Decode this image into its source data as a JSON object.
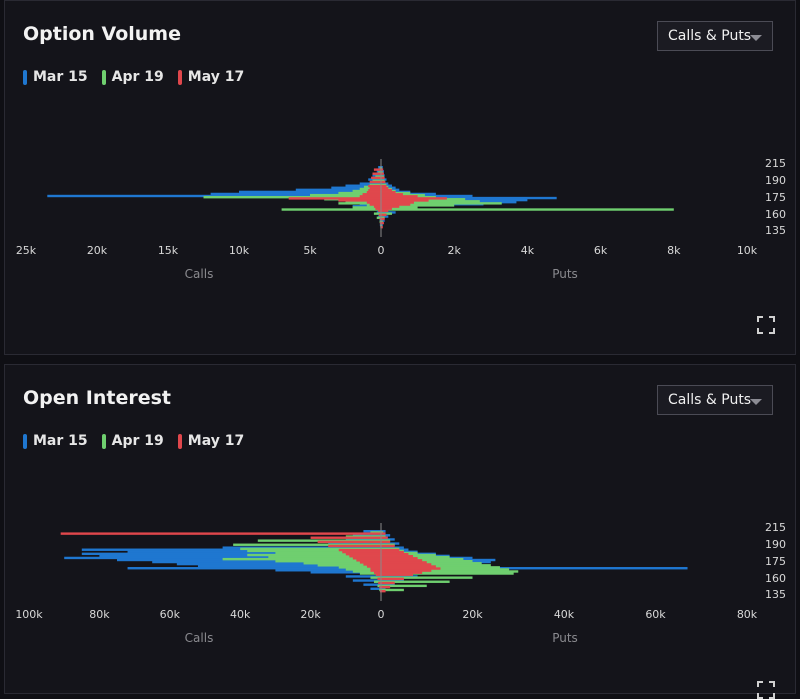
{
  "panels": [
    {
      "title": "Option Volume",
      "dropdown": "Calls & Puts",
      "legend": [
        {
          "label": "Mar 15",
          "color": "#1f77d0"
        },
        {
          "label": "Apr 19",
          "color": "#6fcf6f"
        },
        {
          "label": "May 17",
          "color": "#e0474c"
        }
      ]
    },
    {
      "title": "Open Interest",
      "dropdown": "Calls & Puts",
      "legend": [
        {
          "label": "Mar 15",
          "color": "#1f77d0"
        },
        {
          "label": "Apr 19",
          "color": "#6fcf6f"
        },
        {
          "label": "May 17",
          "color": "#e0474c"
        }
      ]
    }
  ],
  "icons": {
    "expand": "expand-icon",
    "caret": "chevron-down-icon"
  },
  "chart_data": [
    {
      "type": "bar",
      "orientation": "horizontal-diverging",
      "title": "Option Volume",
      "left_label": "Calls",
      "right_label": "Puts",
      "strike_ticks": [
        "215",
        "190",
        "175",
        "160",
        "135"
      ],
      "calls_ticks": [
        "25k",
        "20k",
        "15k",
        "10k",
        "5k",
        "0"
      ],
      "puts_ticks": [
        "2k",
        "4k",
        "6k",
        "8k",
        "10k"
      ],
      "calls_max": 25000,
      "puts_max": 10000,
      "strike_range": [
        130,
        220
      ],
      "series": [
        {
          "name": "Mar 15",
          "color": "#1f77d0",
          "strikes": [
            210,
            205,
            200,
            195,
            190,
            187.5,
            185,
            182.5,
            180,
            177.5,
            175,
            172.5,
            170,
            167.5,
            165,
            162.5,
            160,
            155,
            150,
            145,
            140
          ],
          "calls": [
            200,
            300,
            600,
            900,
            1500,
            2500,
            3500,
            6000,
            10000,
            12000,
            23500,
            6000,
            3000,
            2500,
            1500,
            2000,
            700,
            300,
            200,
            100,
            80
          ],
          "puts": [
            50,
            80,
            100,
            150,
            200,
            300,
            400,
            500,
            800,
            1500,
            2500,
            4800,
            4000,
            3700,
            2800,
            800,
            600,
            400,
            200,
            100,
            50
          ]
        },
        {
          "name": "Apr 19",
          "color": "#6fcf6f",
          "strikes": [
            210,
            205,
            200,
            195,
            190,
            187.5,
            185,
            182.5,
            180,
            177.5,
            175,
            172.5,
            170,
            167.5,
            165,
            162.5,
            160,
            155,
            150,
            145,
            140
          ],
          "calls": [
            100,
            200,
            400,
            600,
            800,
            1200,
            1500,
            2000,
            3000,
            5000,
            12500,
            4000,
            2500,
            3000,
            1000,
            2000,
            7000,
            500,
            300,
            100,
            50
          ],
          "puts": [
            30,
            50,
            80,
            100,
            150,
            200,
            300,
            400,
            800,
            1200,
            1500,
            2300,
            2700,
            3300,
            2000,
            1000,
            8000,
            300,
            100,
            50,
            30
          ],
          "offset": 1
        },
        {
          "name": "May 17",
          "color": "#e0474c",
          "strikes": [
            210,
            205,
            200,
            195,
            190,
            187.5,
            185,
            182.5,
            180,
            177.5,
            175,
            172.5,
            170,
            167.5,
            165,
            162.5,
            160,
            155,
            150,
            145,
            140
          ],
          "calls": [
            500,
            600,
            700,
            800,
            900,
            800,
            900,
            1000,
            1300,
            1500,
            6500,
            3000,
            1000,
            800,
            500,
            400,
            200,
            150,
            100,
            80,
            50
          ],
          "puts": [
            60,
            80,
            100,
            120,
            150,
            200,
            300,
            400,
            600,
            1000,
            1800,
            1300,
            900,
            800,
            500,
            300,
            200,
            150,
            100,
            80,
            50
          ],
          "offset": 2
        }
      ]
    },
    {
      "type": "bar",
      "orientation": "horizontal-diverging",
      "title": "Open Interest",
      "left_label": "Calls",
      "right_label": "Puts",
      "strike_ticks": [
        "215",
        "190",
        "175",
        "160",
        "135"
      ],
      "calls_ticks": [
        "100k",
        "80k",
        "60k",
        "40k",
        "20k",
        "0"
      ],
      "puts_ticks": [
        "20k",
        "40k",
        "60k",
        "80k"
      ],
      "calls_max": 100000,
      "puts_max": 80000,
      "strike_range": [
        130,
        220
      ],
      "series": [
        {
          "name": "Mar 15",
          "color": "#1f77d0",
          "strikes": [
            210,
            205,
            200,
            195,
            190,
            187.5,
            185,
            182.5,
            180,
            177.5,
            175,
            172.5,
            170,
            167.5,
            165,
            162.5,
            160,
            155,
            150,
            145,
            140
          ],
          "calls": [
            5000,
            8000,
            10000,
            15000,
            45000,
            85000,
            72000,
            85000,
            80000,
            90000,
            75000,
            65000,
            58000,
            52000,
            72000,
            30000,
            20000,
            10000,
            8000,
            5000,
            3000
          ],
          "puts": [
            1000,
            2000,
            3000,
            4000,
            5000,
            6000,
            8000,
            12000,
            15000,
            20000,
            25000,
            24000,
            22000,
            20000,
            67000,
            15000,
            12000,
            8000,
            5000,
            3000,
            1000
          ]
        },
        {
          "name": "Apr 19",
          "color": "#6fcf6f",
          "strikes": [
            210,
            205,
            200,
            195,
            190,
            187.5,
            185,
            182.5,
            180,
            177.5,
            175,
            172.5,
            170,
            167.5,
            165,
            162.5,
            160,
            155,
            150,
            145,
            140
          ],
          "calls": [
            3000,
            10000,
            35000,
            42000,
            40000,
            38000,
            30000,
            38000,
            32000,
            45000,
            30000,
            22000,
            18000,
            12000,
            10000,
            8000,
            6000,
            3000,
            2000,
            1000,
            500
          ],
          "puts": [
            500,
            1000,
            2000,
            3000,
            4000,
            5000,
            8000,
            12000,
            15000,
            18000,
            20000,
            22000,
            24000,
            26000,
            28000,
            30000,
            29000,
            20000,
            15000,
            10000,
            5000
          ],
          "offset": 1
        },
        {
          "name": "May 17",
          "color": "#e0474c",
          "strikes": [
            210,
            205,
            200,
            195,
            190,
            187.5,
            185,
            182.5,
            180,
            177.5,
            175,
            172.5,
            170,
            167.5,
            165,
            162.5,
            160,
            155,
            150,
            145,
            140
          ],
          "calls": [
            91000,
            20000,
            18000,
            15000,
            12000,
            11000,
            10000,
            9000,
            8000,
            7000,
            6000,
            5000,
            4000,
            3000,
            3000,
            2000,
            1500,
            1000,
            800,
            500,
            300
          ],
          "puts": [
            1000,
            1500,
            2000,
            3000,
            4000,
            5000,
            6000,
            7000,
            8000,
            9000,
            10000,
            11000,
            12000,
            13000,
            11000,
            9000,
            7000,
            5000,
            3000,
            2000,
            1000
          ],
          "offset": 2
        }
      ]
    }
  ]
}
